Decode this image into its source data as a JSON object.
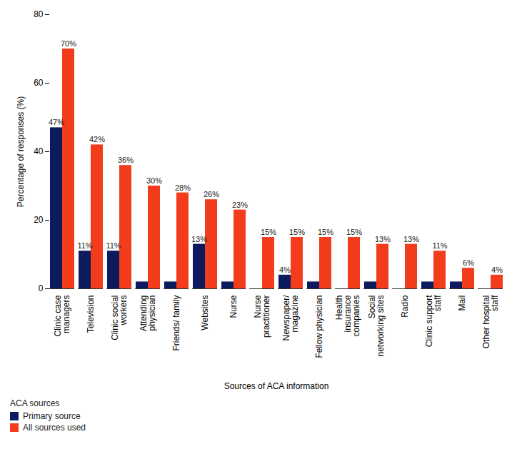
{
  "chart_data": {
    "type": "bar",
    "x_label": "Sources of ACA information",
    "y_label": "Percentage of responses (%)",
    "legend_title": "ACA sources",
    "categories": [
      "Clinic case managers",
      "Television",
      "Clinic social workers",
      "Attending physician",
      "Friends/ family",
      "Websites",
      "Nurse",
      "Nurse practitioner",
      "Newspaper/ magazine",
      "Fellow physician",
      "Health insurance companies",
      "Social networking sites",
      "Radio",
      "Clinic support staff",
      "Mail",
      "Other hospital staff"
    ],
    "series": [
      {
        "name": "Primary source",
        "color": "#0c1a5e",
        "values": [
          47,
          11,
          11,
          2,
          2,
          13,
          2,
          0,
          4,
          2,
          0,
          2,
          0,
          2,
          2,
          0
        ],
        "value_labels": [
          "47%",
          "11%",
          "11%",
          null,
          null,
          "13%",
          null,
          null,
          "4%",
          null,
          null,
          null,
          null,
          null,
          null,
          null
        ]
      },
      {
        "name": "All sources used",
        "color": "#f23c1c",
        "values": [
          70,
          42,
          36,
          30,
          28,
          26,
          23,
          15,
          15,
          15,
          15,
          13,
          13,
          11,
          6,
          4
        ],
        "value_labels": [
          "70%",
          "42%",
          "36%",
          "30%",
          "28%",
          "26%",
          "23%",
          "15%",
          "15%",
          "15%",
          "15%",
          "13%",
          "13%",
          "11%",
          "6%",
          "4%"
        ]
      }
    ],
    "ylim": [
      0,
      80
    ],
    "yticks": [
      0,
      20,
      40,
      60,
      80
    ],
    "grid": false,
    "legend": "bottom-left",
    "data_labels": true
  }
}
